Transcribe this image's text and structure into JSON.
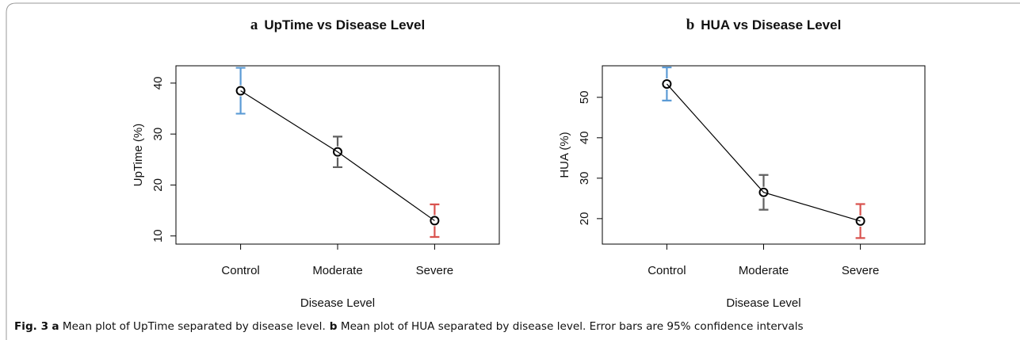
{
  "chart_data": [
    {
      "type": "line",
      "panel": "a",
      "title": "UpTime vs Disease Level",
      "x_label": "Disease Level",
      "y_label": "UpTime (%)",
      "categories": [
        "Control",
        "Moderate",
        "Severe"
      ],
      "series": [
        {
          "color": "#000000",
          "values": [
            38.5,
            26.5,
            13.0
          ],
          "errors": [
            4.5,
            3.0,
            3.2
          ],
          "error_colors": [
            "#5b9bd5",
            "#606060",
            "#d9534f"
          ]
        }
      ],
      "ylim": [
        8.4,
        43.4
      ],
      "yticks": [
        10,
        20,
        30,
        40
      ]
    },
    {
      "type": "line",
      "panel": "b",
      "title": "HUA vs Disease Level",
      "x_label": "Disease Level",
      "y_label": "HUA (%)",
      "categories": [
        "Control",
        "Moderate",
        "Severe"
      ],
      "series": [
        {
          "color": "#000000",
          "values": [
            53.3,
            26.5,
            19.4
          ],
          "errors": [
            4.1,
            4.3,
            4.2
          ],
          "error_colors": [
            "#5b9bd5",
            "#606060",
            "#d9534f"
          ]
        }
      ],
      "ylim": [
        13.7,
        57.8
      ],
      "yticks": [
        20,
        30,
        40,
        50
      ]
    }
  ],
  "caption": {
    "figure": "Fig. 3",
    "a_label": "a",
    "a_text": "Mean plot of UpTime separated by disease level.",
    "b_label": "b",
    "b_text": "Mean plot of HUA separated by disease level. Error bars are 95% confidence intervals"
  }
}
